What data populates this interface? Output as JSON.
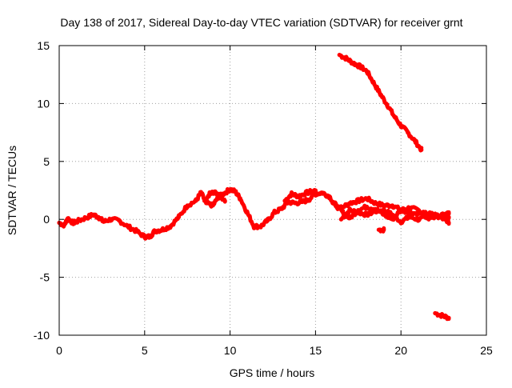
{
  "chart_data": {
    "type": "scatter",
    "title": "Day 138 of 2017, Sidereal Day-to-day VTEC variation (SDTVAR) for receiver grnt",
    "xlabel": "GPS time / hours",
    "ylabel": "SDTVAR / TECUs",
    "xlim": [
      0,
      25
    ],
    "ylim": [
      -10,
      15
    ],
    "xticks": [
      0,
      5,
      10,
      15,
      20,
      25
    ],
    "yticks": [
      -10,
      -5,
      0,
      5,
      10,
      15
    ],
    "xtick_labels": [
      "0",
      "5",
      "10",
      "15",
      "20",
      "25"
    ],
    "ytick_labels": [
      "-10",
      "-5",
      "0",
      "5",
      "10",
      "15"
    ],
    "grid": true,
    "legend": "none",
    "series_color": "#ff0000",
    "series": [
      {
        "name": "main-trace",
        "points": [
          [
            0,
            -0.3
          ],
          [
            0.3,
            -0.5
          ],
          [
            0.5,
            0.1
          ],
          [
            0.8,
            -0.3
          ],
          [
            1.0,
            -0.2
          ],
          [
            1.5,
            0.1
          ],
          [
            2.0,
            0.4
          ],
          [
            2.3,
            0.2
          ],
          [
            2.6,
            -0.2
          ],
          [
            3.0,
            0.0
          ],
          [
            3.5,
            -0.1
          ],
          [
            4.0,
            -0.6
          ],
          [
            4.5,
            -1.0
          ],
          [
            5.0,
            -1.5
          ],
          [
            5.3,
            -1.5
          ],
          [
            5.6,
            -1.0
          ],
          [
            6.0,
            -0.9
          ],
          [
            6.5,
            -0.6
          ],
          [
            7.0,
            0.2
          ],
          [
            7.5,
            1.2
          ],
          [
            8.0,
            1.6
          ],
          [
            8.3,
            2.3
          ],
          [
            8.6,
            1.4
          ],
          [
            9.0,
            1.2
          ],
          [
            9.3,
            1.9
          ],
          [
            9.6,
            2.2
          ],
          [
            10.0,
            2.6
          ],
          [
            10.3,
            2.4
          ],
          [
            10.6,
            1.8
          ],
          [
            11.0,
            0.6
          ],
          [
            11.4,
            -0.6
          ],
          [
            11.8,
            -0.6
          ],
          [
            12.2,
            -0.1
          ],
          [
            12.6,
            0.6
          ],
          [
            13.0,
            0.9
          ],
          [
            13.4,
            1.5
          ],
          [
            13.8,
            1.4
          ],
          [
            14.2,
            1.5
          ],
          [
            14.6,
            1.7
          ],
          [
            15.0,
            2.2
          ],
          [
            15.4,
            2.3
          ],
          [
            15.8,
            2.0
          ],
          [
            16.2,
            1.2
          ],
          [
            16.6,
            0.6
          ],
          [
            17.0,
            0.1
          ],
          [
            17.5,
            0.8
          ],
          [
            18.0,
            1.1
          ],
          [
            18.5,
            0.9
          ],
          [
            19.0,
            0.4
          ],
          [
            19.5,
            0.0
          ],
          [
            20.0,
            0.8
          ],
          [
            20.5,
            0.6
          ],
          [
            21.0,
            0.5
          ],
          [
            21.5,
            0.5
          ],
          [
            22.0,
            0.4
          ],
          [
            22.5,
            0.1
          ],
          [
            22.8,
            0.2
          ]
        ]
      },
      {
        "name": "secondary-trace-a",
        "points": [
          [
            8.5,
            1.6
          ],
          [
            8.8,
            2.2
          ],
          [
            9.1,
            2.4
          ],
          [
            9.4,
            2.0
          ],
          [
            9.7,
            1.6
          ]
        ]
      },
      {
        "name": "secondary-trace-b",
        "points": [
          [
            13.2,
            1.6
          ],
          [
            13.6,
            2.2
          ],
          [
            14.0,
            2.0
          ],
          [
            14.5,
            2.3
          ],
          [
            15.0,
            2.5
          ]
        ]
      },
      {
        "name": "secondary-trace-c",
        "points": [
          [
            16.0,
            1.4
          ],
          [
            16.5,
            1.0
          ],
          [
            17.0,
            1.4
          ],
          [
            17.5,
            1.6
          ],
          [
            18.0,
            1.8
          ],
          [
            18.5,
            1.4
          ],
          [
            19.0,
            1.2
          ],
          [
            19.5,
            1.2
          ],
          [
            20.0,
            0.8
          ],
          [
            20.5,
            1.0
          ],
          [
            21.0,
            0.8
          ],
          [
            21.5,
            0.4
          ],
          [
            22.0,
            0.2
          ],
          [
            22.5,
            0.4
          ],
          [
            22.8,
            0.5
          ]
        ]
      },
      {
        "name": "secondary-trace-d",
        "points": [
          [
            16.5,
            0.0
          ],
          [
            17.0,
            0.8
          ],
          [
            17.5,
            0.6
          ],
          [
            18.0,
            0.4
          ],
          [
            18.5,
            0.7
          ],
          [
            19.0,
            0.8
          ],
          [
            19.5,
            0.4
          ],
          [
            20.0,
            -0.2
          ],
          [
            20.5,
            0.2
          ],
          [
            21.0,
            0.0
          ],
          [
            21.5,
            0.1
          ],
          [
            22.0,
            0.3
          ],
          [
            22.5,
            0.2
          ],
          [
            22.8,
            -0.3
          ]
        ]
      },
      {
        "name": "declining-arc",
        "points": [
          [
            16.4,
            14.2
          ],
          [
            16.8,
            13.9
          ],
          [
            17.2,
            13.5
          ],
          [
            17.6,
            13.2
          ],
          [
            18.0,
            12.8
          ],
          [
            18.4,
            11.8
          ],
          [
            18.8,
            10.8
          ],
          [
            19.2,
            9.9
          ],
          [
            19.6,
            8.9
          ],
          [
            20.0,
            8.1
          ],
          [
            20.4,
            7.5
          ],
          [
            20.8,
            6.8
          ],
          [
            21.2,
            6.0
          ]
        ]
      },
      {
        "name": "isolated-segment-upper",
        "points": [
          [
            18.7,
            -0.9
          ],
          [
            19.0,
            -0.9
          ]
        ]
      },
      {
        "name": "isolated-segment-lower",
        "points": [
          [
            22.0,
            -8.1
          ],
          [
            22.4,
            -8.3
          ],
          [
            22.8,
            -8.5
          ]
        ]
      }
    ]
  }
}
